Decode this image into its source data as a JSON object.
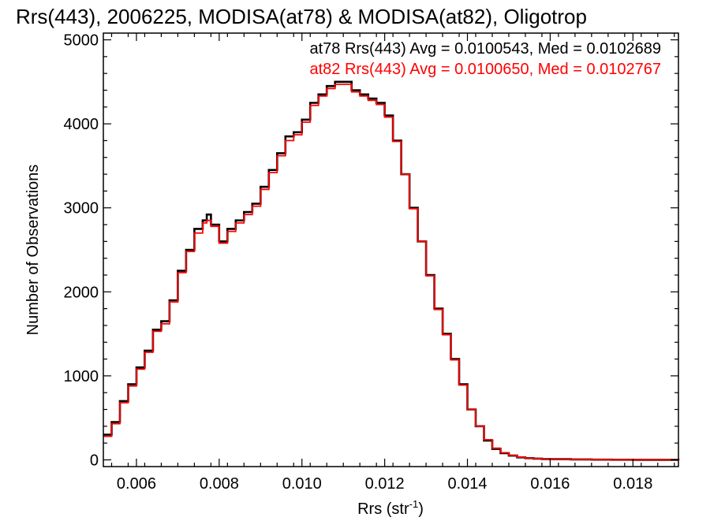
{
  "chart_data": {
    "type": "line",
    "title": "Rrs(443), 2006225, MODISA(at78) & MODISA(at82), Oligotrop",
    "xlabel": "Rrs (str",
    "xlabel_sup": "-1",
    "xlabel_close": ")",
    "ylabel": "Number of Observations",
    "xlim": [
      0.0052,
      0.0191
    ],
    "ylim": [
      -80,
      5080
    ],
    "grid": false,
    "legend_position": "top-right",
    "x_ticks": [
      {
        "value": 0.006,
        "label": "0.006"
      },
      {
        "value": 0.008,
        "label": "0.008"
      },
      {
        "value": 0.01,
        "label": "0.010"
      },
      {
        "value": 0.012,
        "label": "0.012"
      },
      {
        "value": 0.014,
        "label": "0.014"
      },
      {
        "value": 0.016,
        "label": "0.016"
      },
      {
        "value": 0.018,
        "label": "0.018"
      }
    ],
    "y_ticks": [
      {
        "value": 0,
        "label": "0"
      },
      {
        "value": 1000,
        "label": "1000"
      },
      {
        "value": 2000,
        "label": "2000"
      },
      {
        "value": 3000,
        "label": "3000"
      },
      {
        "value": 4000,
        "label": "4000"
      },
      {
        "value": 5000,
        "label": "5000"
      }
    ],
    "x": [
      0.0052,
      0.0054,
      0.0056,
      0.0058,
      0.006,
      0.0062,
      0.0064,
      0.0066,
      0.0068,
      0.007,
      0.0072,
      0.0074,
      0.0076,
      0.0077,
      0.0078,
      0.008,
      0.0082,
      0.0084,
      0.0086,
      0.0088,
      0.009,
      0.0092,
      0.0094,
      0.0096,
      0.0098,
      0.01,
      0.0102,
      0.0104,
      0.0106,
      0.0108,
      0.011,
      0.0112,
      0.0114,
      0.0116,
      0.0118,
      0.012,
      0.0122,
      0.0124,
      0.0126,
      0.0128,
      0.013,
      0.0132,
      0.0134,
      0.0136,
      0.0138,
      0.014,
      0.0142,
      0.0144,
      0.0146,
      0.0148,
      0.015,
      0.0152,
      0.0154,
      0.0156,
      0.0158,
      0.016,
      0.0165,
      0.017,
      0.0175,
      0.018,
      0.0185,
      0.0191
    ],
    "series": [
      {
        "name": "at78",
        "color": "#000000",
        "values": [
          300,
          450,
          700,
          900,
          1100,
          1300,
          1550,
          1650,
          1900,
          2250,
          2500,
          2750,
          2850,
          2920,
          2800,
          2600,
          2750,
          2850,
          2950,
          3050,
          3250,
          3450,
          3650,
          3850,
          3900,
          4050,
          4250,
          4350,
          4450,
          4500,
          4500,
          4400,
          4350,
          4300,
          4250,
          4100,
          3800,
          3400,
          3000,
          2600,
          2200,
          1800,
          1500,
          1200,
          900,
          600,
          400,
          230,
          130,
          80,
          50,
          30,
          20,
          15,
          10,
          8,
          5,
          3,
          2,
          1,
          1,
          0
        ]
      },
      {
        "name": "at82",
        "color": "#ff0000",
        "values": [
          280,
          430,
          680,
          880,
          1080,
          1280,
          1530,
          1620,
          1880,
          2230,
          2480,
          2700,
          2820,
          2850,
          2780,
          2580,
          2720,
          2820,
          2920,
          3020,
          3220,
          3420,
          3620,
          3800,
          3870,
          4020,
          4220,
          4330,
          4420,
          4470,
          4470,
          4380,
          4330,
          4280,
          4230,
          4080,
          3790,
          3400,
          2990,
          2600,
          2190,
          1790,
          1490,
          1190,
          890,
          600,
          400,
          240,
          140,
          85,
          55,
          32,
          20,
          15,
          10,
          8,
          5,
          3,
          2,
          1,
          1,
          0
        ]
      }
    ],
    "annotations": [
      {
        "text": "at78 Rrs(443) Avg = 0.0100543, Med = 0.0102689",
        "color": "#000000"
      },
      {
        "text": "at82 Rrs(443) Avg = 0.0100650, Med = 0.0102767",
        "color": "#ff0000"
      }
    ]
  }
}
